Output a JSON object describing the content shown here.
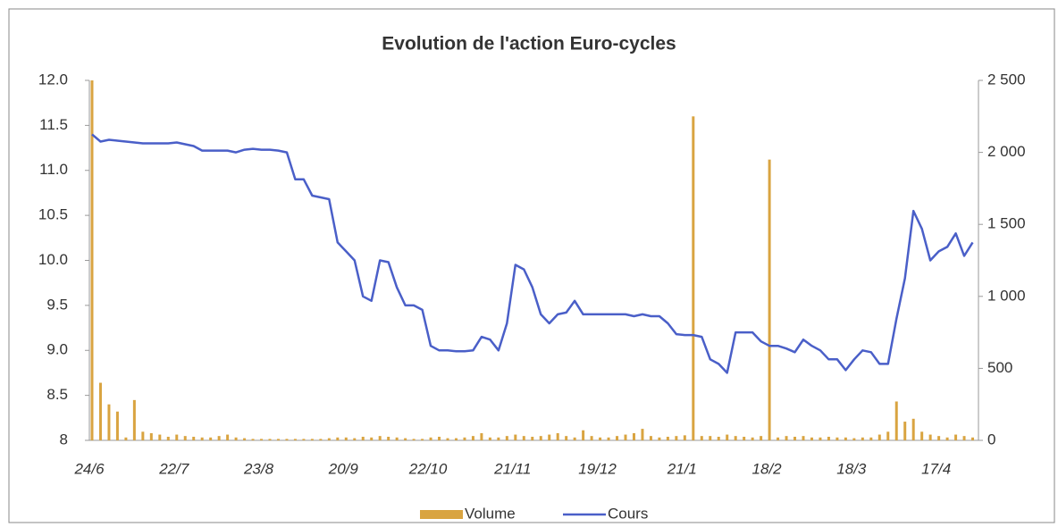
{
  "chart_data": {
    "type": "bar-line",
    "title": "Evolution de l'action Euro-cycles",
    "categories": [
      "24/6",
      null,
      null,
      null,
      null,
      null,
      null,
      null,
      null,
      null,
      "22/7",
      null,
      null,
      null,
      null,
      null,
      null,
      null,
      null,
      null,
      "23/8",
      null,
      null,
      null,
      null,
      null,
      null,
      null,
      null,
      null,
      "20/9",
      null,
      null,
      null,
      null,
      null,
      null,
      null,
      null,
      null,
      "22/10",
      null,
      null,
      null,
      null,
      null,
      null,
      null,
      null,
      null,
      "21/11",
      null,
      null,
      null,
      null,
      null,
      null,
      null,
      null,
      null,
      "19/12",
      null,
      null,
      null,
      null,
      null,
      null,
      null,
      null,
      null,
      "21/1",
      null,
      null,
      null,
      null,
      null,
      null,
      null,
      null,
      null,
      "18/2",
      null,
      null,
      null,
      null,
      null,
      null,
      null,
      null,
      null,
      "18/3",
      null,
      null,
      null,
      null,
      null,
      null,
      null,
      null,
      null,
      "17/4",
      null,
      null,
      null,
      null
    ],
    "series": [
      {
        "name": "Volume",
        "color": "#d9a441",
        "axis": "y2",
        "kind": "bar",
        "values": [
          2500,
          400,
          250,
          200,
          20,
          280,
          60,
          50,
          40,
          25,
          40,
          30,
          25,
          20,
          20,
          30,
          40,
          20,
          15,
          10,
          10,
          10,
          10,
          10,
          10,
          10,
          10,
          10,
          15,
          20,
          20,
          15,
          25,
          20,
          30,
          25,
          20,
          15,
          10,
          10,
          20,
          25,
          15,
          15,
          20,
          30,
          50,
          20,
          20,
          30,
          40,
          30,
          25,
          30,
          40,
          50,
          30,
          20,
          70,
          30,
          20,
          20,
          30,
          40,
          50,
          80,
          30,
          20,
          25,
          30,
          35,
          2250,
          30,
          30,
          25,
          40,
          30,
          25,
          20,
          30,
          1950,
          20,
          30,
          25,
          30,
          20,
          20,
          25,
          20,
          20,
          15,
          20,
          20,
          40,
          60,
          270,
          130,
          150,
          60,
          40,
          30,
          20,
          40,
          30,
          20
        ]
      },
      {
        "name": "Cours",
        "color": "#4a5fc8",
        "kind": "line",
        "values": [
          11.4,
          11.32,
          11.34,
          11.33,
          11.32,
          11.31,
          11.3,
          11.3,
          11.3,
          11.3,
          11.31,
          11.29,
          11.27,
          11.22,
          11.22,
          11.22,
          11.22,
          11.2,
          11.23,
          11.24,
          11.23,
          11.23,
          11.22,
          11.2,
          10.9,
          10.9,
          10.72,
          10.7,
          10.68,
          10.2,
          10.1,
          10.0,
          9.6,
          9.55,
          10.0,
          9.98,
          9.7,
          9.5,
          9.5,
          9.45,
          9.05,
          9.0,
          9.0,
          8.99,
          8.99,
          9.0,
          9.15,
          9.12,
          9.0,
          9.3,
          9.95,
          9.9,
          9.7,
          9.4,
          9.3,
          9.4,
          9.42,
          9.55,
          9.4,
          9.4,
          9.4,
          9.4,
          9.4,
          9.4,
          9.38,
          9.4,
          9.38,
          9.38,
          9.3,
          9.18,
          9.17,
          9.17,
          9.15,
          8.9,
          8.85,
          8.75,
          9.2,
          9.2,
          9.2,
          9.1,
          9.05,
          9.05,
          9.02,
          8.98,
          9.12,
          9.05,
          9.0,
          8.9,
          8.9,
          8.78,
          8.9,
          9.0,
          8.98,
          8.85,
          8.85,
          9.35,
          9.8,
          10.55,
          10.35,
          10.0,
          10.1,
          10.15,
          10.3,
          10.05,
          10.2
        ]
      }
    ],
    "ylim": [
      8,
      12
    ],
    "yticks": [
      8,
      8.5,
      {
        "value": 9,
        "label": "9.0"
      },
      9.5,
      {
        "value": 10,
        "label": "10.0"
      },
      10.5,
      {
        "value": 11,
        "label": "11.0"
      },
      11.5,
      {
        "value": 12,
        "label": "12.0"
      }
    ],
    "y2lim": [
      0,
      2500
    ],
    "y2ticks": [
      0,
      500,
      {
        "value": 1000,
        "label": "1 000"
      },
      {
        "value": 1500,
        "label": "1 500"
      },
      {
        "value": 2000,
        "label": "2 000"
      },
      {
        "value": 2500,
        "label": "2 500"
      }
    ]
  }
}
